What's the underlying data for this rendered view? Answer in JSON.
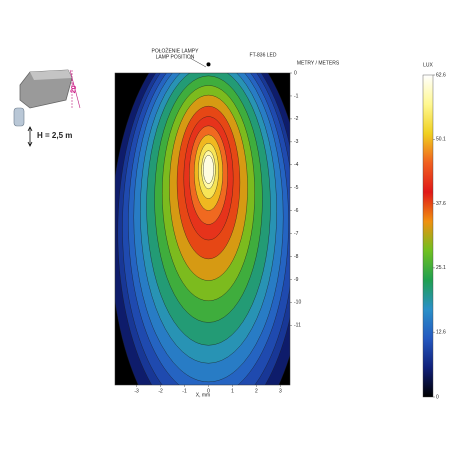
{
  "chart_data": {
    "type": "contour",
    "title": "FT-836 LED",
    "lamp_label": [
      "POŁOŻENIE LAMPY",
      "LAMP POSITION"
    ],
    "mount_height": "H = 2,5 m",
    "tilt": "20°",
    "x_label": "X, mm",
    "y_label": "METRY / METERS",
    "colorbar_label": "LUX",
    "xlim": [
      -3.9,
      3.4
    ],
    "ylim": [
      -13.6,
      0
    ],
    "xticks": [
      -3,
      -2,
      -1,
      0,
      1,
      2,
      3
    ],
    "yticks": [
      0,
      -1,
      -2,
      -3,
      -4,
      -5,
      -6,
      -7,
      -8,
      -9,
      -10,
      -11
    ],
    "lamp_position": {
      "x": 0,
      "y": 0.2
    },
    "peak": {
      "x": 0,
      "y": -4.2,
      "value": 62.6
    },
    "levels": [
      5,
      8,
      10,
      12.6,
      15,
      18,
      21,
      25,
      29,
      33,
      37.6,
      42,
      46,
      50,
      54,
      58,
      61
    ],
    "clim": [
      0,
      62.6
    ],
    "cticks": [
      0,
      12.6,
      25.1,
      37.6,
      50.1,
      62.6
    ],
    "colors": [
      "#000000",
      "#10207a",
      "#2458c0",
      "#2a90c8",
      "#20a050",
      "#70c020",
      "#f09010",
      "#e01818",
      "#f06020",
      "#f0d020",
      "#fff890",
      "#ffffff"
    ]
  }
}
